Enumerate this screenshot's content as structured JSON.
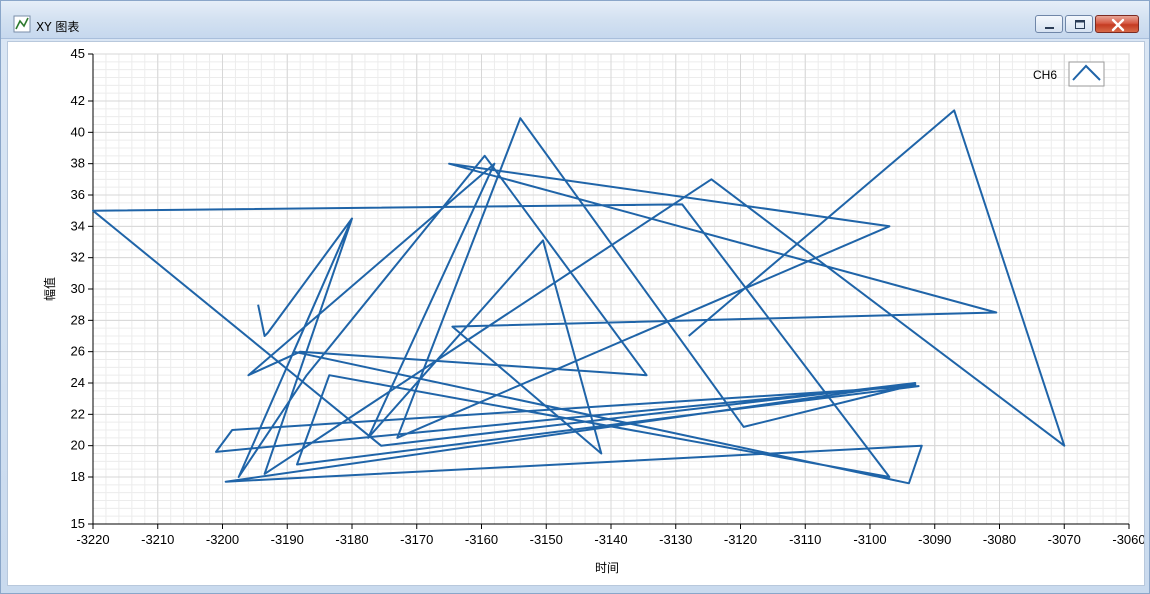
{
  "window": {
    "title": "XY 图表",
    "icon": "xy-graph-icon",
    "controls": [
      "minimize-icon",
      "maximize-icon",
      "close-icon"
    ]
  },
  "colors": {
    "series": "#1f64a8",
    "grid_major": "#d7d7d7",
    "grid_minor": "#ececec",
    "plot_bg": "#ffffff"
  },
  "chart_data": {
    "type": "line",
    "title": "",
    "xlabel": "时间",
    "ylabel": "幅值",
    "xlim": [
      -3220,
      -3060
    ],
    "ylim": [
      15,
      45
    ],
    "x_ticks": [
      -3220,
      -3210,
      -3200,
      -3190,
      -3180,
      -3170,
      -3160,
      -3150,
      -3140,
      -3130,
      -3120,
      -3110,
      -3100,
      -3090,
      -3080,
      -3070,
      -3060
    ],
    "y_ticks": [
      15,
      18,
      20,
      22,
      24,
      26,
      28,
      30,
      32,
      34,
      36,
      38,
      40,
      42,
      45
    ],
    "grid": true,
    "legend_position": "top-right",
    "series": [
      {
        "name": "CH6",
        "x": [
          -3194.5,
          -3193.5,
          -3193,
          -3180,
          -3197.5,
          -3187,
          -3159.5,
          -3134.5,
          -3188,
          -3196,
          -3158,
          -3177.5,
          -3150.5,
          -3141.5,
          -3164.5,
          -3080.5,
          -3165,
          -3097,
          -3173,
          -3154,
          -3119.5,
          -3093,
          -3201,
          -3198.5,
          -3092.5,
          -3188.5,
          -3183.5,
          -3097,
          -3129,
          -3220,
          -3175.5,
          -3093,
          -3199.5,
          -3092,
          -3094,
          -3189,
          -3180,
          -3193.5,
          -3124.5,
          -3070,
          -3087,
          -3128
        ],
        "y": [
          29,
          27,
          27.2,
          34.5,
          18,
          24.5,
          38.5,
          24.5,
          26,
          24.5,
          38,
          20.5,
          33.1,
          19.5,
          27.6,
          28.5,
          38,
          34,
          20.5,
          40.9,
          21.2,
          23.9,
          19.6,
          21,
          23.8,
          18.8,
          24.5,
          18,
          35.4,
          35,
          20,
          24,
          17.7,
          20,
          17.6,
          26,
          34.5,
          18.2,
          37,
          20,
          41.4,
          27
        ]
      }
    ]
  }
}
